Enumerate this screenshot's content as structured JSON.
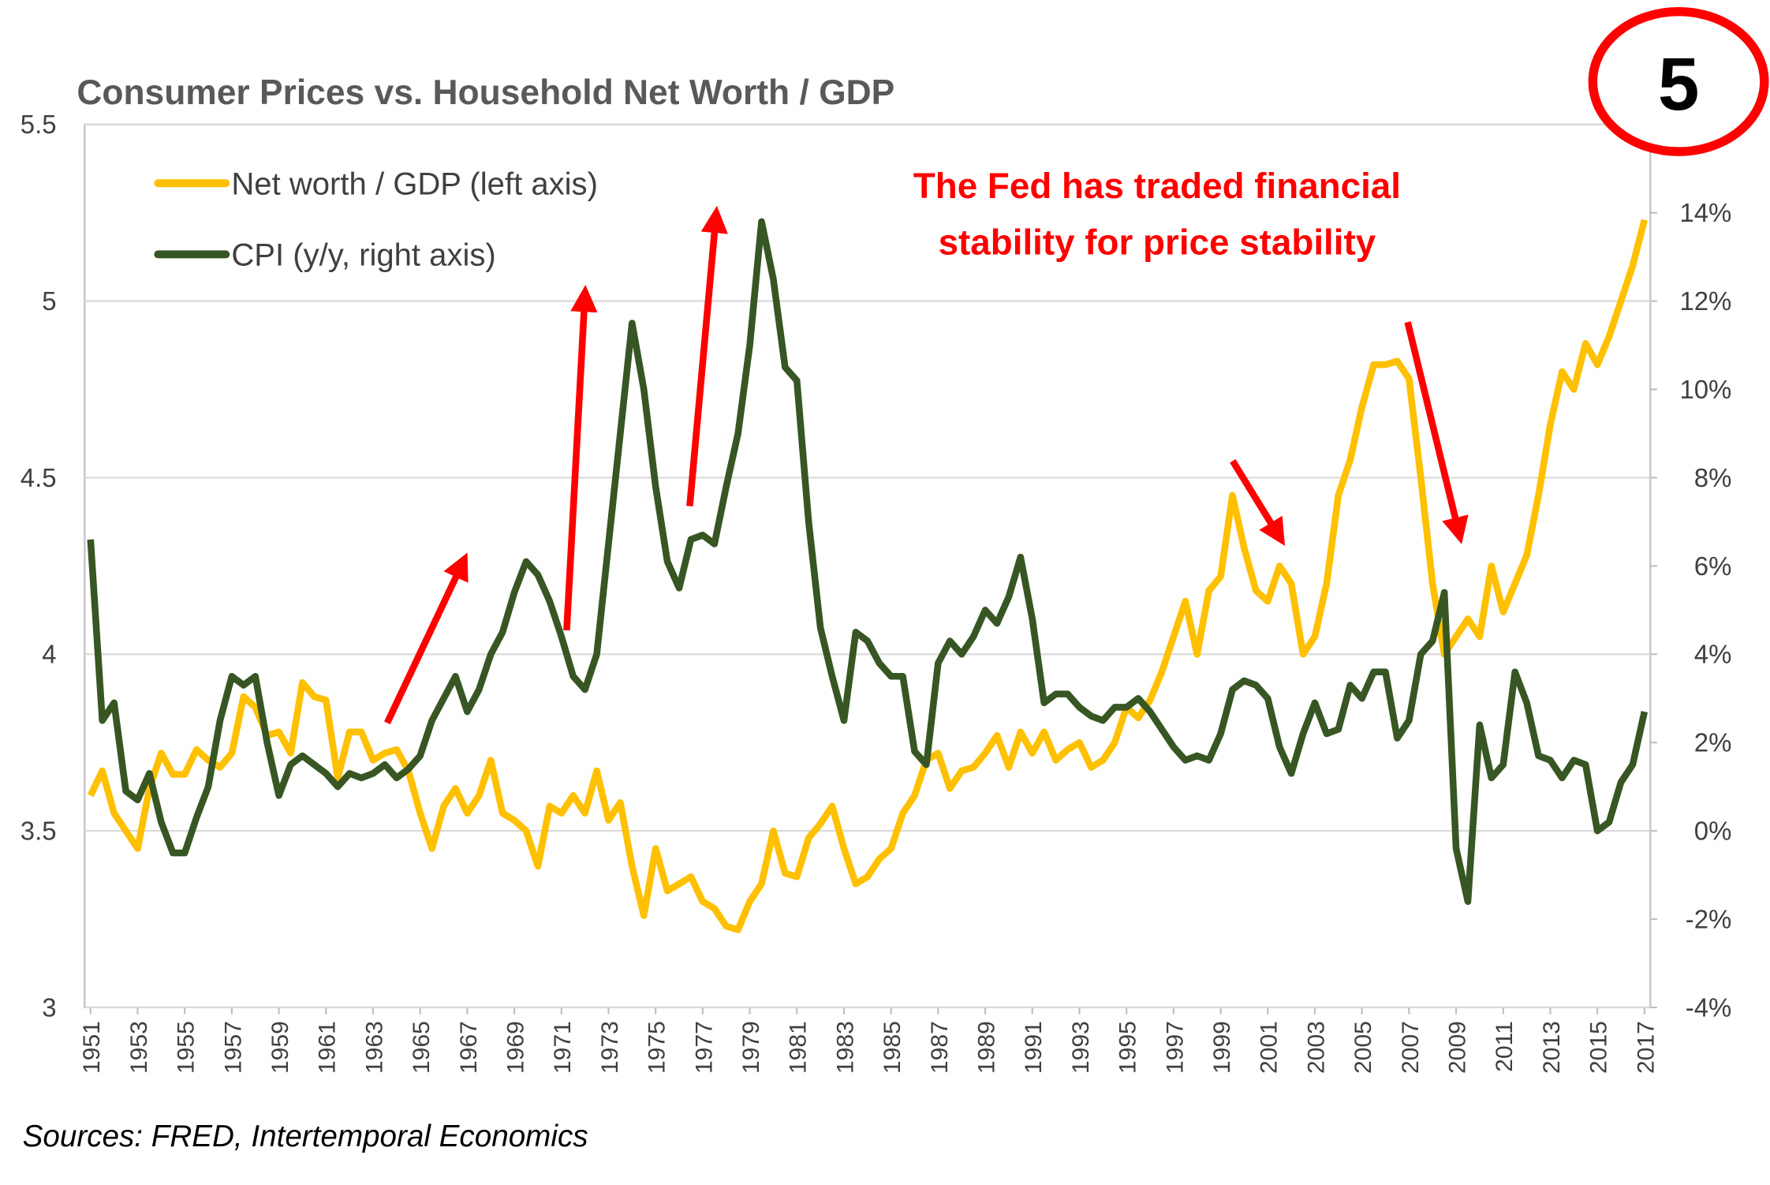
{
  "chart_data": {
    "type": "line",
    "title": "Consumer Prices vs. Household Net Worth / GDP",
    "annotation": [
      "The Fed has traded financial",
      "stability for price stability"
    ],
    "badge": "5",
    "source": "Sources: FRED, Intertemporal Economics",
    "x": [
      1951,
      1951.5,
      1952,
      1952.5,
      1953,
      1953.5,
      1954,
      1954.5,
      1955,
      1955.5,
      1956,
      1956.5,
      1957,
      1957.5,
      1958,
      1958.5,
      1959,
      1959.5,
      1960,
      1960.5,
      1961,
      1961.5,
      1962,
      1962.5,
      1963,
      1963.5,
      1964,
      1964.5,
      1965,
      1965.5,
      1966,
      1966.5,
      1967,
      1967.5,
      1968,
      1968.5,
      1969,
      1969.5,
      1970,
      1970.5,
      1971,
      1971.5,
      1972,
      1972.5,
      1973,
      1973.5,
      1974,
      1974.5,
      1975,
      1975.5,
      1976,
      1976.5,
      1977,
      1977.5,
      1978,
      1978.5,
      1979,
      1979.5,
      1980,
      1980.5,
      1981,
      1981.5,
      1982,
      1982.5,
      1983,
      1983.5,
      1984,
      1984.5,
      1985,
      1985.5,
      1986,
      1986.5,
      1987,
      1987.5,
      1988,
      1988.5,
      1989,
      1989.5,
      1990,
      1990.5,
      1991,
      1991.5,
      1992,
      1992.5,
      1993,
      1993.5,
      1994,
      1994.5,
      1995,
      1995.5,
      1996,
      1996.5,
      1997,
      1997.5,
      1998,
      1998.5,
      1999,
      1999.5,
      2000,
      2000.5,
      2001,
      2001.5,
      2002,
      2002.5,
      2003,
      2003.5,
      2004,
      2004.5,
      2005,
      2005.5,
      2006,
      2006.5,
      2007,
      2007.5,
      2008,
      2008.5,
      2009,
      2009.5,
      2010,
      2010.5,
      2011,
      2011.5,
      2012,
      2012.5,
      2013,
      2013.5,
      2014,
      2014.5,
      2015,
      2015.5,
      2016,
      2016.5,
      2017
    ],
    "series": [
      {
        "name": "Net worth / GDP (left axis)",
        "color": "#ffc000",
        "axis": "y",
        "values": [
          3.6,
          3.67,
          3.55,
          3.5,
          3.45,
          3.62,
          3.72,
          3.66,
          3.66,
          3.73,
          3.7,
          3.68,
          3.72,
          3.88,
          3.85,
          3.77,
          3.78,
          3.72,
          3.92,
          3.88,
          3.87,
          3.65,
          3.78,
          3.78,
          3.7,
          3.72,
          3.73,
          3.67,
          3.55,
          3.45,
          3.57,
          3.62,
          3.55,
          3.6,
          3.7,
          3.55,
          3.53,
          3.5,
          3.4,
          3.57,
          3.55,
          3.6,
          3.55,
          3.67,
          3.53,
          3.58,
          3.4,
          3.26,
          3.45,
          3.33,
          3.35,
          3.37,
          3.3,
          3.28,
          3.23,
          3.22,
          3.3,
          3.35,
          3.5,
          3.38,
          3.37,
          3.48,
          3.52,
          3.57,
          3.45,
          3.35,
          3.37,
          3.42,
          3.45,
          3.55,
          3.6,
          3.7,
          3.72,
          3.62,
          3.67,
          3.68,
          3.72,
          3.77,
          3.68,
          3.78,
          3.72,
          3.78,
          3.7,
          3.73,
          3.75,
          3.68,
          3.7,
          3.75,
          3.85,
          3.82,
          3.87,
          3.95,
          4.05,
          4.15,
          4.0,
          4.18,
          4.22,
          4.45,
          4.3,
          4.18,
          4.15,
          4.25,
          4.2,
          4.0,
          4.05,
          4.2,
          4.45,
          4.55,
          4.7,
          4.82,
          4.82,
          4.83,
          4.78,
          4.5,
          4.2,
          4.0,
          4.05,
          4.1,
          4.05,
          4.25,
          4.12,
          4.2,
          4.28,
          4.45,
          4.65,
          4.8,
          4.75,
          4.88,
          4.82,
          4.9,
          5.0,
          5.1,
          5.23
        ]
      },
      {
        "name": "CPI (y/y, right axis)",
        "color": "#375623",
        "axis": "y2",
        "values": [
          6.6,
          2.5,
          2.9,
          0.9,
          0.7,
          1.3,
          0.2,
          -0.5,
          -0.5,
          0.3,
          1.0,
          2.5,
          3.5,
          3.3,
          3.5,
          2.0,
          0.8,
          1.5,
          1.7,
          1.5,
          1.3,
          1.0,
          1.3,
          1.2,
          1.3,
          1.5,
          1.2,
          1.4,
          1.7,
          2.5,
          3.0,
          3.5,
          2.7,
          3.2,
          4.0,
          4.5,
          5.4,
          6.1,
          5.8,
          5.2,
          4.4,
          3.5,
          3.2,
          4.0,
          6.5,
          9.0,
          11.5,
          10.0,
          7.8,
          6.1,
          5.5,
          6.6,
          6.7,
          6.5,
          7.8,
          9.0,
          11.0,
          13.8,
          12.5,
          10.5,
          10.2,
          7.0,
          4.6,
          3.5,
          2.5,
          4.5,
          4.3,
          3.8,
          3.5,
          3.5,
          1.8,
          1.5,
          3.8,
          4.3,
          4.0,
          4.4,
          5.0,
          4.7,
          5.3,
          6.2,
          4.8,
          2.9,
          3.1,
          3.1,
          2.8,
          2.6,
          2.5,
          2.8,
          2.8,
          3.0,
          2.7,
          2.3,
          1.9,
          1.6,
          1.7,
          1.6,
          2.2,
          3.2,
          3.4,
          3.3,
          3.0,
          1.9,
          1.3,
          2.2,
          2.9,
          2.2,
          2.3,
          3.3,
          3.0,
          3.6,
          3.6,
          2.1,
          2.5,
          4.0,
          4.3,
          5.4,
          -0.4,
          -1.6,
          2.4,
          1.2,
          1.5,
          3.6,
          2.9,
          1.7,
          1.6,
          1.2,
          1.6,
          1.5,
          0.0,
          0.2,
          1.1,
          1.5,
          2.7
        ]
      }
    ],
    "xlim": [
      1950.75,
      2017.25
    ],
    "xticks": [
      1951,
      1953,
      1955,
      1957,
      1959,
      1961,
      1963,
      1965,
      1967,
      1969,
      1971,
      1973,
      1975,
      1977,
      1979,
      1981,
      1983,
      1985,
      1987,
      1989,
      1991,
      1993,
      1995,
      1997,
      1999,
      2001,
      2003,
      2005,
      2007,
      2009,
      2011,
      2013,
      2015,
      2017
    ],
    "ylim": [
      3,
      5.5
    ],
    "yticks": [
      3,
      3.5,
      4,
      4.5,
      5,
      5.5
    ],
    "y2lim": [
      -4,
      16
    ],
    "y2ticks": [
      {
        "value": -4,
        "label": "-4%"
      },
      {
        "value": -2,
        "label": "-2%"
      },
      {
        "value": 0,
        "label": "0%"
      },
      {
        "value": 2,
        "label": "2%"
      },
      {
        "value": 4,
        "label": "4%"
      },
      {
        "value": 6,
        "label": "6%"
      },
      {
        "value": 8,
        "label": "8%"
      },
      {
        "value": 10,
        "label": "10%"
      },
      {
        "value": 12,
        "label": "12%"
      },
      {
        "value": 14,
        "label": "14%"
      }
    ],
    "grid": true,
    "legend": "top-left"
  }
}
